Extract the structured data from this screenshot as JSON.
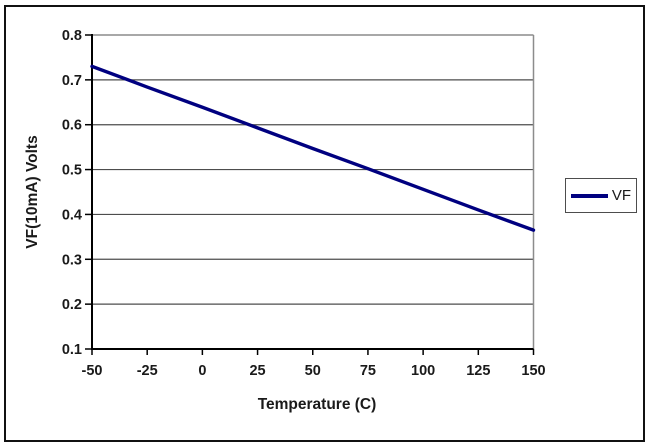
{
  "chart_data": {
    "type": "line",
    "title": "",
    "xlabel": "Temperature (C)",
    "ylabel": "VF(10mA) Volts",
    "x": [
      -50,
      -25,
      0,
      25,
      50,
      75,
      100,
      125,
      150
    ],
    "series": [
      {
        "name": "VF",
        "values": [
          0.73,
          0.684,
          0.639,
          0.593,
          0.547,
          0.502,
          0.456,
          0.41,
          0.365
        ],
        "color": "#000080"
      }
    ],
    "xlim": [
      -50,
      150
    ],
    "ylim": [
      0.1,
      0.8
    ],
    "xticks": [
      "-50",
      "-25",
      "0",
      "25",
      "50",
      "75",
      "100",
      "125",
      "150"
    ],
    "yticks": [
      "0.8",
      "0.7",
      "0.6",
      "0.5",
      "0.4",
      "0.3",
      "0.2",
      "0.1"
    ],
    "grid": "horizontal",
    "legend_position": "right"
  },
  "legend": {
    "label": "VF"
  },
  "colors": {
    "line": "#000080",
    "gridline": "#4d4d4d",
    "plot_border": "#8c8c8c",
    "axis": "#000000",
    "frame": "#111111",
    "legend_border": "#4d4d4d"
  }
}
